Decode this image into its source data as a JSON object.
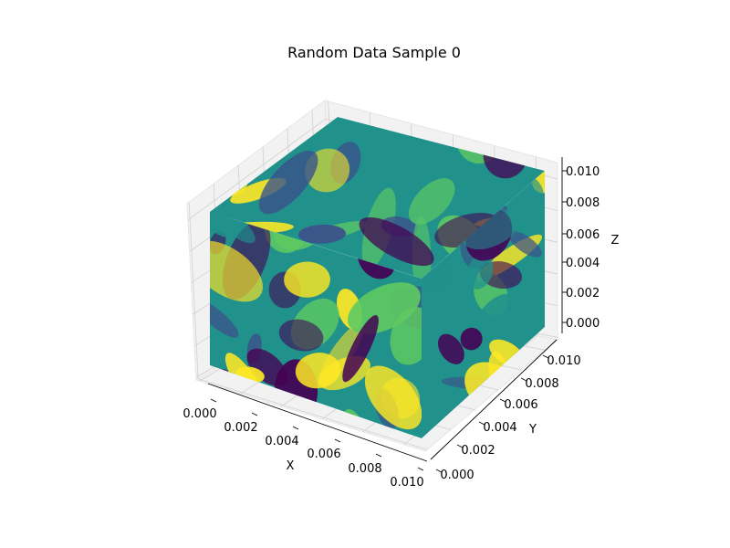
{
  "chart_data": {
    "type": "scatter",
    "projection": "3d",
    "title": "Random Data Sample 0",
    "xlabel": "X",
    "ylabel": "Y",
    "zlabel": "Z",
    "xlim": [
      0.0,
      0.0102
    ],
    "ylim": [
      0.0,
      0.0102
    ],
    "zlim": [
      0.0,
      0.0102
    ],
    "x_ticks": [
      "0.000",
      "0.002",
      "0.004",
      "0.006",
      "0.008",
      "0.010"
    ],
    "y_ticks": [
      "0.000",
      "0.002",
      "0.004",
      "0.006",
      "0.008",
      "0.010"
    ],
    "z_ticks": [
      "0.000",
      "0.002",
      "0.004",
      "0.006",
      "0.008",
      "0.010"
    ],
    "colormap": "viridis",
    "colormap_colors": [
      "#440154",
      "#3b528b",
      "#21918c",
      "#5ec962",
      "#fde725"
    ],
    "grid": true,
    "pane_color": "#f2f2f2",
    "grid_color": "#d0d0d0",
    "axis_line_color": "#000000"
  }
}
